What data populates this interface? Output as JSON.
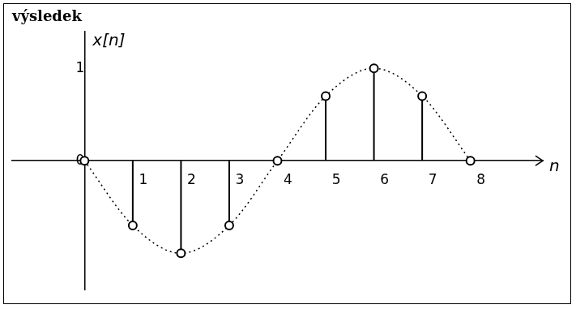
{
  "chart_data": {
    "type": "stem",
    "title": "výsledek",
    "xlabel": "n",
    "ylabel": "x[n]",
    "x": [
      0,
      1,
      2,
      3,
      4,
      5,
      6,
      7,
      8
    ],
    "values": [
      0,
      -0.7,
      -1,
      -0.7,
      0,
      0.7,
      1,
      0.7,
      0
    ],
    "color": "#000000",
    "marker": "circle",
    "line_style": "dotted",
    "xlim": [
      -1.5,
      9.5
    ],
    "xticks": [
      1,
      2,
      3,
      4,
      5,
      6,
      7,
      8
    ],
    "ylim": [
      -1.4,
      1.4
    ],
    "yticks": [
      0,
      1
    ],
    "grid": false
  }
}
